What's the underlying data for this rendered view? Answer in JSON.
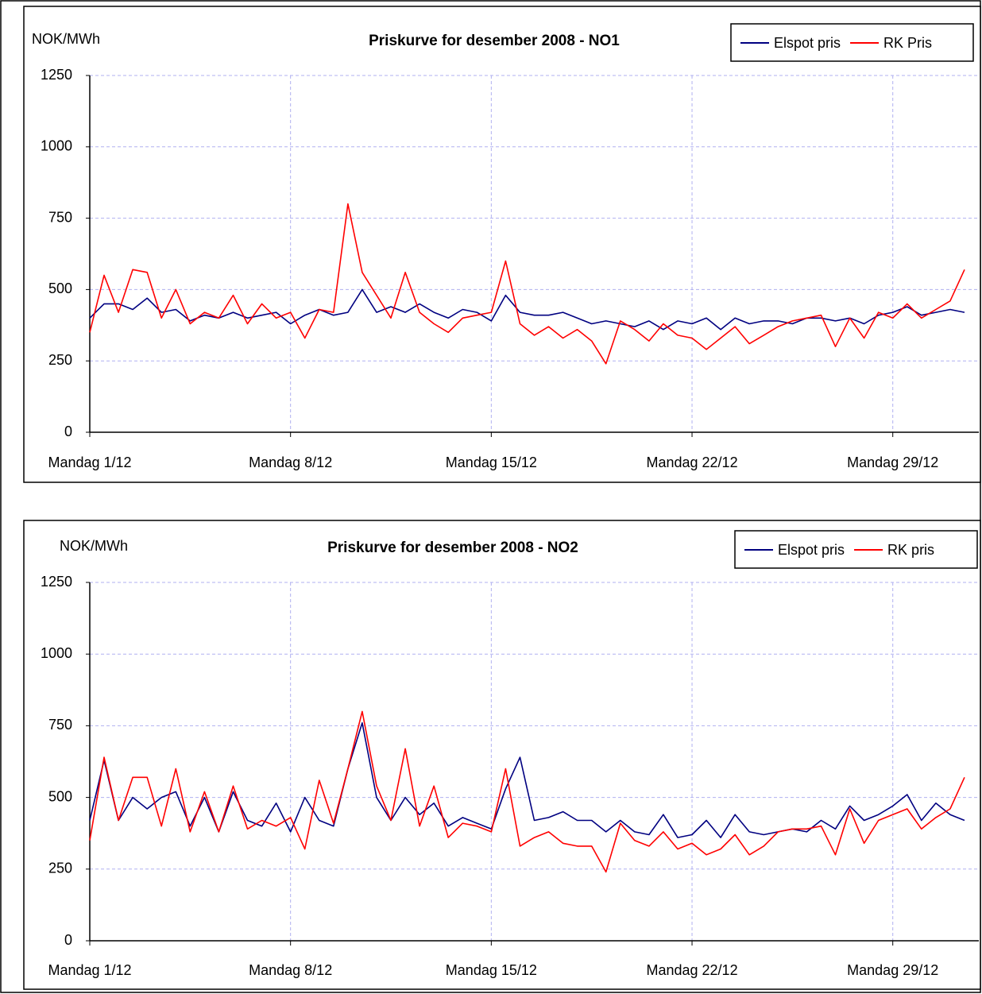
{
  "chart_data": [
    {
      "type": "line",
      "title": "Priskurve for desember 2008 - NO1",
      "y_label": "NOK/MWh",
      "x": [
        1,
        1.5,
        2,
        2.5,
        3,
        3.5,
        4,
        4.5,
        5,
        5.5,
        6,
        6.5,
        7,
        7.5,
        8,
        8.5,
        9,
        9.5,
        10,
        10.5,
        11,
        11.5,
        12,
        12.5,
        13,
        13.5,
        14,
        14.5,
        15,
        15.5,
        16,
        16.5,
        17,
        17.5,
        18,
        18.5,
        19,
        19.5,
        20,
        20.5,
        21,
        21.5,
        22,
        22.5,
        23,
        23.5,
        24,
        24.5,
        25,
        25.5,
        26,
        26.5,
        27,
        27.5,
        28,
        28.5,
        29,
        29.5,
        30,
        30.5,
        31,
        31.5
      ],
      "series": [
        {
          "name": "Elspot pris",
          "color": "#000080",
          "values": [
            400,
            450,
            450,
            430,
            470,
            420,
            430,
            390,
            410,
            400,
            420,
            400,
            410,
            420,
            380,
            410,
            430,
            410,
            420,
            500,
            420,
            440,
            420,
            450,
            420,
            400,
            430,
            420,
            390,
            480,
            420,
            410,
            410,
            420,
            400,
            380,
            390,
            380,
            370,
            390,
            360,
            390,
            380,
            400,
            360,
            400,
            380,
            390,
            390,
            380,
            400,
            400,
            390,
            400,
            380,
            410,
            420,
            440,
            410,
            420,
            430,
            420
          ]
        },
        {
          "name": "RK Pris",
          "color": "#ff0000",
          "values": [
            350,
            550,
            420,
            570,
            560,
            400,
            500,
            380,
            420,
            400,
            480,
            380,
            450,
            400,
            420,
            330,
            430,
            420,
            800,
            560,
            480,
            400,
            560,
            420,
            380,
            350,
            400,
            410,
            420,
            600,
            380,
            340,
            370,
            330,
            360,
            320,
            240,
            390,
            360,
            320,
            380,
            340,
            330,
            290,
            330,
            370,
            310,
            340,
            370,
            390,
            400,
            410,
            300,
            400,
            330,
            420,
            400,
            450,
            400,
            430,
            460,
            570
          ]
        }
      ],
      "xlim": [
        1,
        32
      ],
      "ylim": [
        0,
        1250
      ],
      "xticks": [
        {
          "value": 1,
          "label": "Mandag 1/12"
        },
        {
          "value": 8,
          "label": "Mandag  8/12"
        },
        {
          "value": 15,
          "label": "Mandag 15/12"
        },
        {
          "value": 22,
          "label": "Mandag 22/12"
        },
        {
          "value": 29,
          "label": "Mandag 29/12"
        }
      ],
      "yticks": [
        0,
        250,
        500,
        750,
        1000,
        1250
      ],
      "grid": true,
      "legend": "upper right"
    },
    {
      "type": "line",
      "title": "Priskurve for desember 2008 - NO2",
      "y_label": "NOK/MWh",
      "x": [
        1,
        1.5,
        2,
        2.5,
        3,
        3.5,
        4,
        4.5,
        5,
        5.5,
        6,
        6.5,
        7,
        7.5,
        8,
        8.5,
        9,
        9.5,
        10,
        10.5,
        11,
        11.5,
        12,
        12.5,
        13,
        13.5,
        14,
        14.5,
        15,
        15.5,
        16,
        16.5,
        17,
        17.5,
        18,
        18.5,
        19,
        19.5,
        20,
        20.5,
        21,
        21.5,
        22,
        22.5,
        23,
        23.5,
        24,
        24.5,
        25,
        25.5,
        26,
        26.5,
        27,
        27.5,
        28,
        28.5,
        29,
        29.5,
        30,
        30.5,
        31,
        31.5
      ],
      "series": [
        {
          "name": "Elspot pris",
          "color": "#000080",
          "values": [
            420,
            630,
            420,
            500,
            460,
            500,
            520,
            400,
            500,
            380,
            520,
            420,
            400,
            480,
            380,
            500,
            420,
            400,
            600,
            760,
            500,
            420,
            500,
            440,
            480,
            400,
            430,
            410,
            390,
            530,
            640,
            420,
            430,
            450,
            420,
            420,
            380,
            420,
            380,
            370,
            440,
            360,
            370,
            420,
            360,
            440,
            380,
            370,
            380,
            390,
            380,
            420,
            390,
            470,
            420,
            440,
            470,
            510,
            420,
            480,
            440,
            420
          ]
        },
        {
          "name": "RK pris",
          "color": "#ff0000",
          "values": [
            350,
            640,
            420,
            570,
            570,
            400,
            600,
            380,
            520,
            380,
            540,
            390,
            420,
            400,
            430,
            320,
            560,
            410,
            600,
            800,
            540,
            420,
            670,
            400,
            540,
            360,
            410,
            400,
            380,
            600,
            330,
            360,
            380,
            340,
            330,
            330,
            240,
            410,
            350,
            330,
            380,
            320,
            340,
            300,
            320,
            370,
            300,
            330,
            380,
            390,
            390,
            400,
            300,
            460,
            340,
            420,
            440,
            460,
            390,
            430,
            460,
            570
          ]
        }
      ],
      "xlim": [
        1,
        32
      ],
      "ylim": [
        0,
        1250
      ],
      "xticks": [
        {
          "value": 1,
          "label": "Mandag 1/12"
        },
        {
          "value": 8,
          "label": "Mandag  8/12"
        },
        {
          "value": 15,
          "label": "Mandag 15/12"
        },
        {
          "value": 22,
          "label": "Mandag 22/12"
        },
        {
          "value": 29,
          "label": "Mandag 29/12"
        }
      ],
      "yticks": [
        0,
        250,
        500,
        750,
        1000,
        1250
      ],
      "grid": true,
      "legend": "upper right"
    }
  ]
}
